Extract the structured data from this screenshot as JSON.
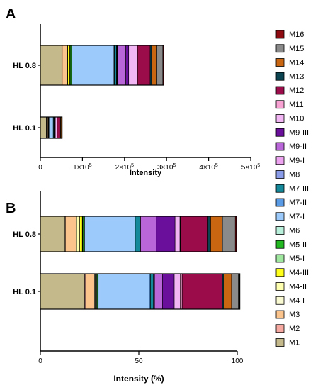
{
  "colors": {
    "M1": "#c4b98a",
    "M2": "#f5a9a0",
    "M3": "#fbc48d",
    "M4-I": "#fafad2",
    "M4-II": "#ffffb0",
    "M4-III": "#ffff1a",
    "M5-I": "#9fe69f",
    "M5-II": "#22b822",
    "M6": "#b8f0dc",
    "M7-I": "#9ccafa",
    "M7-II": "#5a9be6",
    "M7-III": "#13899a",
    "M8": "#8a9be8",
    "M9-I": "#eea3f0",
    "M9-II": "#b966d8",
    "M9-III": "#6a0e9c",
    "M10": "#f2b6f5",
    "M11": "#f8a2d4",
    "M12": "#9b0c4a",
    "M13": "#0c4452",
    "M14": "#c86612",
    "M15": "#8a8a8a",
    "M16": "#8c0a10"
  },
  "legend": [
    "M16",
    "M15",
    "M14",
    "M13",
    "M12",
    "M11",
    "M10",
    "M9-III",
    "M9-II",
    "M9-I",
    "M8",
    "M7-III",
    "M7-II",
    "M7-I",
    "M6",
    "M5-II",
    "M5-I",
    "M4-III",
    "M4-II",
    "M4-I",
    "M3",
    "M2",
    "M1"
  ],
  "chart_data": [
    {
      "panel": "A",
      "type": "bar",
      "orientation": "horizontal",
      "stacked": true,
      "categories": [
        "HL 0.8",
        "HL 0.1"
      ],
      "xlabel": "Intensity",
      "xlim": [
        0,
        500000
      ],
      "xticks": [
        0,
        100000,
        200000,
        300000,
        400000,
        500000
      ],
      "xtick_labels": [
        {
          "base": "0",
          "exp": ""
        },
        {
          "base": "1×10",
          "exp": "5"
        },
        {
          "base": "2×10",
          "exp": "5"
        },
        {
          "base": "3×10",
          "exp": "5"
        },
        {
          "base": "4×10",
          "exp": "5"
        },
        {
          "base": "5×10",
          "exp": "5"
        }
      ],
      "series_order": [
        "M1",
        "M2",
        "M3",
        "M4-I",
        "M4-II",
        "M4-III",
        "M5-I",
        "M5-II",
        "M6",
        "M7-I",
        "M7-II",
        "M7-III",
        "M8",
        "M9-I",
        "M9-II",
        "M9-III",
        "M10",
        "M11",
        "M12",
        "M13",
        "M14",
        "M15",
        "M16"
      ],
      "values": {
        "HL 0.8": [
          51000,
          1000,
          11000,
          1000,
          1000,
          5000,
          1000,
          3000,
          1000,
          100000,
          1000,
          5000,
          1000,
          1000,
          20000,
          7000,
          20000,
          1000,
          30000,
          3000,
          13000,
          14000,
          2000
        ],
        "HL 0.1": [
          14000,
          500,
          3500,
          500,
          300,
          700,
          300,
          500,
          300,
          10000,
          500,
          1500,
          300,
          300,
          1500,
          900,
          4000,
          500,
          7500,
          500,
          2000,
          1000,
          500
        ]
      }
    },
    {
      "panel": "B",
      "type": "bar",
      "orientation": "horizontal",
      "stacked": true,
      "categories": [
        "HL 0.8",
        "HL 0.1"
      ],
      "xlabel": "Intensity (%)",
      "xlim": [
        0,
        100
      ],
      "xticks": [
        0,
        50,
        100
      ],
      "xtick_labels": [
        {
          "base": "0",
          "exp": ""
        },
        {
          "base": "50",
          "exp": ""
        },
        {
          "base": "100",
          "exp": ""
        }
      ],
      "series_order": [
        "M1",
        "M2",
        "M3",
        "M4-I",
        "M4-II",
        "M4-III",
        "M5-I",
        "M5-II",
        "M6",
        "M7-I",
        "M7-II",
        "M7-III",
        "M8",
        "M9-I",
        "M9-II",
        "M9-III",
        "M10",
        "M11",
        "M12",
        "M13",
        "M14",
        "M15",
        "M16"
      ],
      "values": {
        "HL 0.8": [
          12.5,
          0.2,
          5.5,
          0.2,
          1.6,
          1.3,
          0.2,
          0.5,
          0.5,
          25.5,
          0.2,
          2.3,
          0.2,
          0.2,
          8,
          9.5,
          2.5,
          0.2,
          14,
          1.4,
          6,
          6.5,
          0.6
        ],
        "HL 0.1": [
          22.5,
          0.5,
          4.5,
          0.3,
          0.3,
          0.3,
          0.3,
          0.4,
          0.3,
          26,
          0.5,
          1.5,
          0.3,
          0.3,
          4,
          6,
          3,
          1,
          20.5,
          0.6,
          4,
          3.5,
          0.7
        ]
      }
    }
  ]
}
